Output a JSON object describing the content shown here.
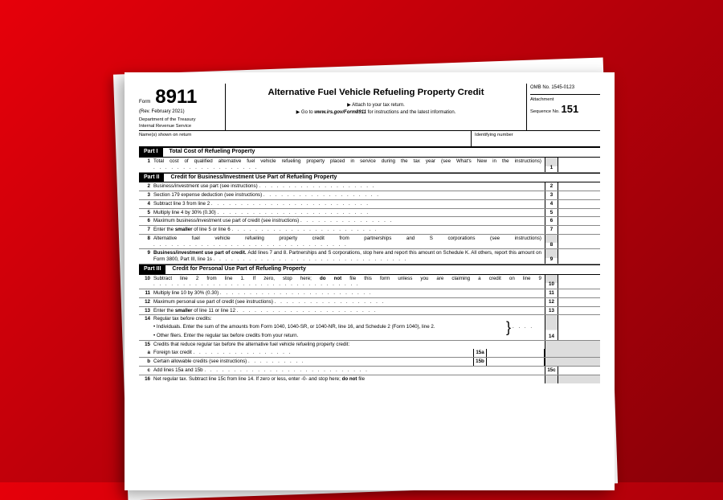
{
  "header": {
    "form_label": "Form",
    "form_number": "8911",
    "revision": "(Rev. February 2021)",
    "dept1": "Department of the Treasury",
    "dept2": "Internal Revenue Service",
    "title": "Alternative Fuel Vehicle Refueling Property Credit",
    "sub1": "▶ Attach to your tax return.",
    "sub2_a": "▶ Go to ",
    "sub2_b": "www.irs.gov/Form8911",
    "sub2_c": " for instructions and the latest information.",
    "omb": "OMB No. 1545-0123",
    "seq_label": "Attachment",
    "seq_label2": "Sequence No.",
    "seq_no": "151",
    "names_label": "Name(s) shown on return",
    "ident_label": "Identifying number"
  },
  "part1": {
    "label": "Part I",
    "title": "Total Cost of Refueling Property"
  },
  "part2": {
    "label": "Part II",
    "title": "Credit for Business/Investment Use Part of Refueling Property"
  },
  "part3": {
    "label": "Part III",
    "title": "Credit for Personal Use Part of Refueling Property"
  },
  "lines": {
    "l1": {
      "n": "1",
      "t": "Total cost of qualified alternative fuel vehicle refueling property placed in service during the tax year (see What's New in the instructions)",
      "box": "1"
    },
    "l2": {
      "n": "2",
      "t": "Business/investment use part (see instructions)",
      "box": "2"
    },
    "l3": {
      "n": "3",
      "t": "Section 179 expense deduction (see instructions)",
      "box": "3"
    },
    "l4": {
      "n": "4",
      "t": "Subtract line 3 from line 2",
      "box": "4"
    },
    "l5": {
      "n": "5",
      "t": "Multiply line 4 by 30% (0.30)",
      "box": "5"
    },
    "l6": {
      "n": "6",
      "t": "Maximum business/investment use part of credit (see instructions)",
      "box": "6"
    },
    "l7": {
      "n": "7",
      "t1": "Enter the ",
      "t2": "smaller",
      "t3": " of line 5 or line 6",
      "box": "7"
    },
    "l8": {
      "n": "8",
      "t": "Alternative fuel vehicle refueling property credit from partnerships and S corporations (see instructions)",
      "box": "8"
    },
    "l9": {
      "n": "9",
      "t1": "Business/investment use part of credit. ",
      "t2": "Add lines 7 and 8. Partnerships and S corporations, stop here and report this amount on Schedule K. All others, report this amount on Form 3800, Part III, line 1s",
      "box": "9"
    },
    "l10": {
      "n": "10",
      "t1": "Subtract line 2 from line 1. If zero, stop here; ",
      "t2": "do not",
      "t3": " file this form unless you are claiming a credit on line 9",
      "box": "10"
    },
    "l11": {
      "n": "11",
      "t": "Multiply line 10 by 30% (0.30)",
      "box": "11"
    },
    "l12": {
      "n": "12",
      "t": "Maximum personal use part of credit (see instructions)",
      "box": "12"
    },
    "l13": {
      "n": "13",
      "t1": "Enter the ",
      "t2": "smaller",
      "t3": " of line 11 or line 12",
      "box": "13"
    },
    "l14": {
      "n": "14",
      "t": "Regular tax before credits:",
      "b1": "Individuals. Enter the sum of the amounts from Form 1040, 1040-SR,  or 1040-NR, line 16, and Schedule 2 (Form 1040), line 2.",
      "b2": "Other filers. Enter the regular tax before credits from your return.",
      "box": "14"
    },
    "l15": {
      "n": "15",
      "t": "Credits that reduce regular tax before the alternative fuel vehicle refueling property credit:"
    },
    "l15a": {
      "n": "a",
      "t": "Foreign tax credit",
      "box": "15a"
    },
    "l15b": {
      "n": "b",
      "t": "Certain allowable credits (see instructions)",
      "box": "15b"
    },
    "l15c": {
      "n": "c",
      "t": "Add lines 15a and 15b",
      "box": "15c"
    },
    "l16": {
      "n": "16",
      "t1": "Net regular tax. Subtract line 15c from line 14. If zero or less, enter -0- and stop here; ",
      "t2": "do not",
      "t3": " file"
    }
  }
}
